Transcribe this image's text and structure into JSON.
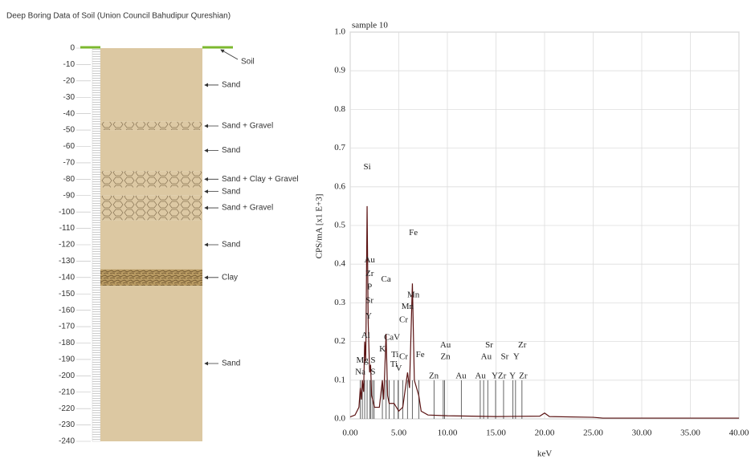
{
  "chart_data": [
    {
      "type": "borehole",
      "title": "Deep Boring Data of Soil (Union Council Bahudipur Qureshian)",
      "ylim": [
        -240,
        0
      ],
      "yticks": [
        0,
        -10,
        -20,
        -30,
        -40,
        -50,
        -60,
        -70,
        -80,
        -90,
        -100,
        -110,
        -120,
        -130,
        -140,
        -150,
        -160,
        -170,
        -180,
        -190,
        -200,
        -210,
        -220,
        -230,
        -240
      ],
      "surface_label": "Soil",
      "surface_color": "#7cb82f",
      "layers": [
        {
          "name": "Sand",
          "top": 0,
          "bottom": -45,
          "style": "sand"
        },
        {
          "name": "Sand + Gravel",
          "top": -45,
          "bottom": -50,
          "style": "gravel"
        },
        {
          "name": "Sand",
          "top": -50,
          "bottom": -75,
          "style": "sand"
        },
        {
          "name": "Sand + Clay + Gravel",
          "top": -75,
          "bottom": -85,
          "style": "gravel"
        },
        {
          "name": "Sand",
          "top": -85,
          "bottom": -90,
          "style": "sand"
        },
        {
          "name": "Sand + Gravel",
          "top": -90,
          "bottom": -105,
          "style": "gravel"
        },
        {
          "name": "Sand",
          "top": -105,
          "bottom": -135,
          "style": "sand"
        },
        {
          "name": "Clay",
          "top": -135,
          "bottom": -145,
          "style": "clay"
        },
        {
          "name": "Sand",
          "top": -145,
          "bottom": -240,
          "style": "sand"
        }
      ]
    },
    {
      "type": "line",
      "subtitle": "sample 10",
      "x_label": "keV",
      "y_label": "CPS/mA [x1 E+3]",
      "xlim": [
        0,
        40
      ],
      "ylim": [
        0,
        1
      ],
      "xticks": [
        {
          "value": 0,
          "label": "0.00"
        },
        {
          "value": 5,
          "label": "5.00"
        },
        {
          "value": 10,
          "label": "10.00"
        },
        {
          "value": 15,
          "label": "15.00"
        },
        {
          "value": 20,
          "label": "20.00"
        },
        {
          "value": 25,
          "label": "25.00"
        },
        {
          "value": 30,
          "label": "30.00"
        },
        {
          "value": 35,
          "label": "35.00"
        },
        {
          "value": 40,
          "label": "40.00"
        }
      ],
      "yticks": [
        {
          "value": 0,
          "label": "0.0"
        },
        0.1,
        0.2,
        0.3,
        0.4,
        0.5,
        0.6,
        0.7,
        0.8,
        0.9,
        {
          "value": 1,
          "label": "1.0"
        }
      ],
      "grid": true,
      "series": [
        {
          "color": "#5a1212",
          "x": [
            0,
            0.5,
            0.9,
            1.04,
            1.15,
            1.25,
            1.38,
            1.49,
            1.6,
            1.74,
            1.85,
            2.0,
            2.1,
            2.2,
            2.31,
            2.5,
            3.0,
            3.31,
            3.45,
            3.69,
            3.85,
            4.01,
            4.51,
            5.0,
            5.41,
            5.9,
            6.1,
            6.4,
            6.6,
            7.06,
            7.3,
            8.0,
            10,
            15,
            19.5,
            20.0,
            20.5,
            25,
            26,
            40
          ],
          "values": [
            0.005,
            0.01,
            0.03,
            0.08,
            0.05,
            0.1,
            0.07,
            0.2,
            0.15,
            0.55,
            0.25,
            0.12,
            0.14,
            0.06,
            0.05,
            0.03,
            0.03,
            0.1,
            0.05,
            0.22,
            0.06,
            0.04,
            0.04,
            0.02,
            0.03,
            0.12,
            0.08,
            0.35,
            0.1,
            0.06,
            0.02,
            0.01,
            0.008,
            0.006,
            0.007,
            0.015,
            0.006,
            0.004,
            0.002,
            0.002
          ]
        }
      ],
      "marker_height": 0.1,
      "marker_lines": [
        1.04,
        1.25,
        1.49,
        1.74,
        2.01,
        2.12,
        2.31,
        2.46,
        3.31,
        3.69,
        4.01,
        4.51,
        4.93,
        4.95,
        5.41,
        5.9,
        6.4,
        7.06,
        8.63,
        9.57,
        9.71,
        11.44,
        13.38,
        13.73,
        14.16,
        14.96,
        15.78,
        16.74,
        17.01,
        17.67
      ],
      "annotations": [
        {
          "text": "Si",
          "x": 1.74,
          "y": 0.65
        },
        {
          "text": "Au",
          "x": 2.0,
          "y": 0.41
        },
        {
          "text": "Zr",
          "x": 2.0,
          "y": 0.375
        },
        {
          "text": "P",
          "x": 2.0,
          "y": 0.34
        },
        {
          "text": "Sr",
          "x": 2.0,
          "y": 0.305
        },
        {
          "text": "Y",
          "x": 1.9,
          "y": 0.265
        },
        {
          "text": "Al",
          "x": 1.6,
          "y": 0.215
        },
        {
          "text": "Mg",
          "x": 1.25,
          "y": 0.15
        },
        {
          "text": "Na",
          "x": 1.04,
          "y": 0.12
        },
        {
          "text": "S",
          "x": 2.35,
          "y": 0.15
        },
        {
          "text": "S",
          "x": 2.35,
          "y": 0.12
        },
        {
          "text": "Ca",
          "x": 3.69,
          "y": 0.36
        },
        {
          "text": "K",
          "x": 3.31,
          "y": 0.18
        },
        {
          "text": "CaV",
          "x": 4.3,
          "y": 0.21
        },
        {
          "text": "Ti",
          "x": 4.6,
          "y": 0.165
        },
        {
          "text": "Ti",
          "x": 4.5,
          "y": 0.14
        },
        {
          "text": "V",
          "x": 5.0,
          "y": 0.13
        },
        {
          "text": "Cr",
          "x": 5.5,
          "y": 0.255
        },
        {
          "text": "Cr",
          "x": 5.5,
          "y": 0.16
        },
        {
          "text": "Mn",
          "x": 5.9,
          "y": 0.29
        },
        {
          "text": "Mn",
          "x": 6.5,
          "y": 0.32
        },
        {
          "text": "Fe",
          "x": 6.5,
          "y": 0.48
        },
        {
          "text": "Fe",
          "x": 7.2,
          "y": 0.165
        },
        {
          "text": "Au",
          "x": 9.8,
          "y": 0.19
        },
        {
          "text": "Zn",
          "x": 9.8,
          "y": 0.16
        },
        {
          "text": "Zn",
          "x": 8.6,
          "y": 0.11
        },
        {
          "text": "Au",
          "x": 11.4,
          "y": 0.11
        },
        {
          "text": "Sr",
          "x": 14.3,
          "y": 0.19
        },
        {
          "text": "Au",
          "x": 14.0,
          "y": 0.16
        },
        {
          "text": "Au",
          "x": 13.4,
          "y": 0.11
        },
        {
          "text": "YZr",
          "x": 15.3,
          "y": 0.11
        },
        {
          "text": "Sr",
          "x": 15.9,
          "y": 0.16
        },
        {
          "text": "Zr",
          "x": 17.7,
          "y": 0.19
        },
        {
          "text": "Y",
          "x": 17.1,
          "y": 0.16
        },
        {
          "text": "Y",
          "x": 16.7,
          "y": 0.11
        },
        {
          "text": "Zr",
          "x": 17.8,
          "y": 0.11
        }
      ]
    }
  ]
}
